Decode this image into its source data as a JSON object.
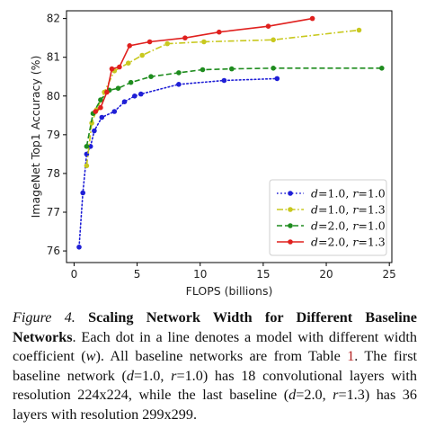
{
  "chart_data": {
    "type": "line",
    "xlabel": "FLOPS (billions)",
    "ylabel": "ImageNet Top1 Accuracy (%)",
    "xlim": [
      -0.6,
      25.2
    ],
    "ylim": [
      75.7,
      82.2
    ],
    "xticks": [
      0,
      5,
      10,
      15,
      20,
      25
    ],
    "yticks": [
      76,
      77,
      78,
      79,
      80,
      81,
      82
    ],
    "grid": false,
    "legend_position": "lower-right",
    "series": [
      {
        "name": "d=1.0, r=1.0",
        "legend": {
          "d": "1.0",
          "r": "1.0"
        },
        "color": "#1f1fd6",
        "dash": "dotted",
        "x": [
          0.4,
          0.7,
          1.0,
          1.3,
          1.6,
          2.2,
          3.2,
          4.0,
          4.8,
          5.3,
          8.3,
          11.9,
          16.1
        ],
        "y": [
          76.1,
          77.5,
          78.5,
          78.7,
          79.1,
          79.45,
          79.6,
          79.85,
          80.0,
          80.05,
          80.3,
          80.4,
          80.45
        ]
      },
      {
        "name": "d=1.0, r=1.3",
        "legend": {
          "d": "1.0",
          "r": "1.3"
        },
        "color": "#c8c81e",
        "dash": "dashdot",
        "x": [
          1.0,
          1.4,
          1.8,
          2.4,
          3.2,
          4.3,
          5.4,
          7.4,
          10.3,
          15.8,
          22.6
        ],
        "y": [
          78.2,
          79.3,
          79.65,
          80.1,
          80.65,
          80.85,
          81.05,
          81.35,
          81.4,
          81.45,
          81.7
        ]
      },
      {
        "name": "d=2.0, r=1.0",
        "legend": {
          "d": "2.0",
          "r": "1.0"
        },
        "color": "#1e8c1e",
        "dash": "dashed",
        "x": [
          1.0,
          1.5,
          2.1,
          2.8,
          3.5,
          4.5,
          6.1,
          8.3,
          10.2,
          12.5,
          15.8,
          24.4
        ],
        "y": [
          78.7,
          79.55,
          79.9,
          80.15,
          80.2,
          80.35,
          80.5,
          80.6,
          80.68,
          80.7,
          80.72,
          80.72
        ]
      },
      {
        "name": "d=2.0, r=1.3",
        "legend": {
          "d": "2.0",
          "r": "1.3"
        },
        "color": "#e0201e",
        "dash": "solid",
        "x": [
          1.7,
          2.1,
          2.6,
          3.0,
          3.6,
          4.4,
          6.0,
          8.8,
          11.5,
          15.4,
          18.9
        ],
        "y": [
          79.6,
          79.7,
          80.1,
          80.7,
          80.75,
          81.3,
          81.4,
          81.5,
          81.65,
          81.8,
          82.0
        ]
      }
    ]
  },
  "caption": {
    "figure_label": "Figure 4.",
    "title": "Scaling Network Width for Different Baseline Networks",
    "s1": ". Each dot in a line denotes a model with different width coefficient (",
    "w": "w",
    "s2": "). All baseline networks are from Table ",
    "table_ref": "1",
    "s3": ". The first baseline network (",
    "d1": "d",
    "s4": "=1.0, ",
    "r1": "r",
    "s5": "=1.0) has 18 convolutional layers with resolution 224x224, while the last baseline (",
    "d2": "d",
    "s6": "=2.0, ",
    "r2": "r",
    "s7": "=1.3) has 36 layers with resolution 299x299."
  }
}
